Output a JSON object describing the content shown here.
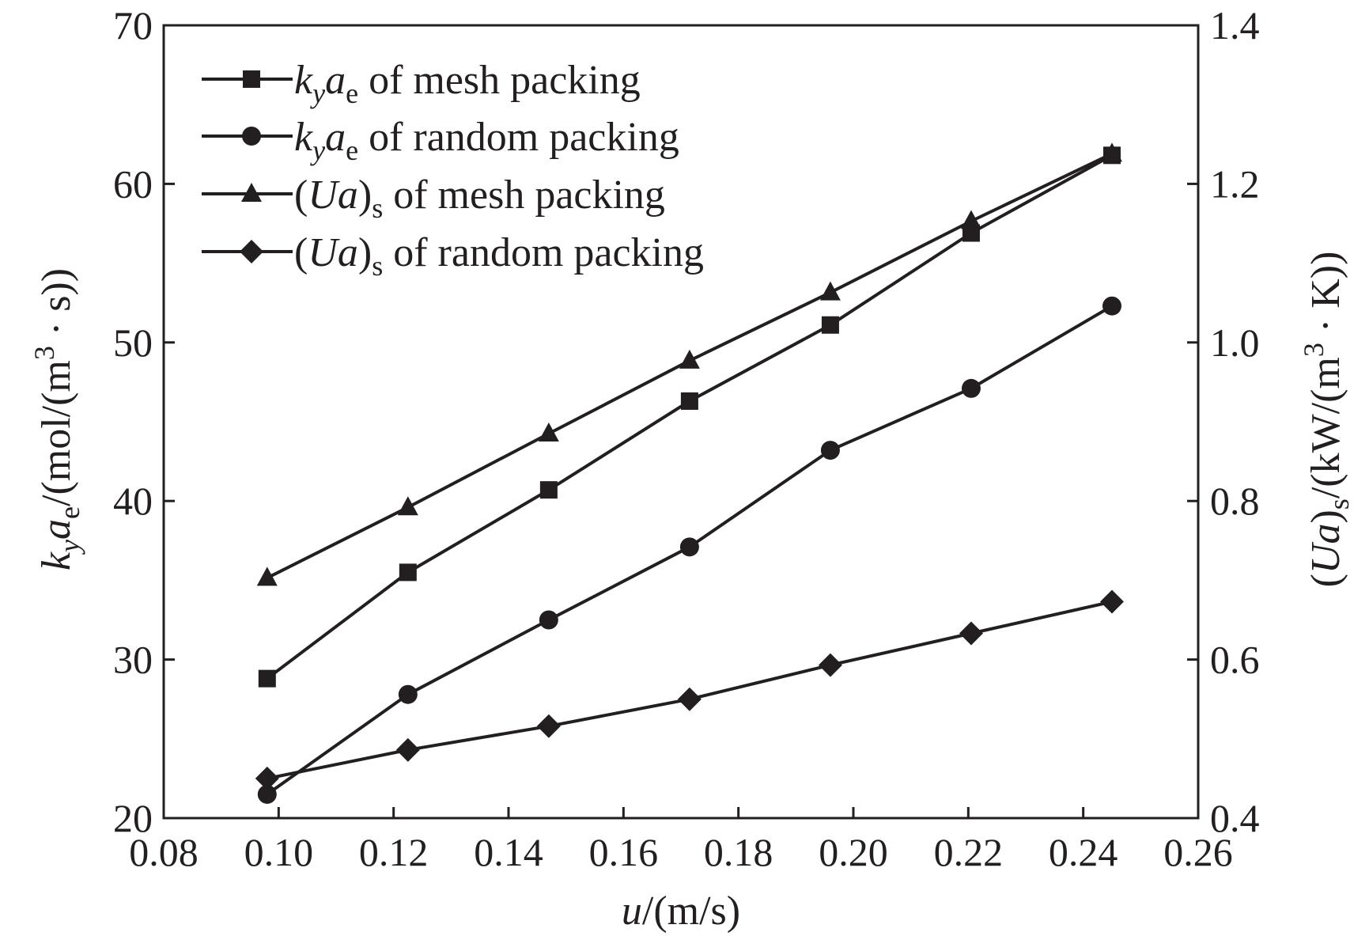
{
  "chart_data": {
    "type": "line",
    "x": [
      0.098,
      0.1225,
      0.147,
      0.1715,
      0.196,
      0.2205,
      0.245
    ],
    "x_axis": {
      "label_italic": "u",
      "label_rest": "/(m/s)",
      "range": [
        0.08,
        0.26
      ],
      "ticks": [
        0.08,
        0.1,
        0.12,
        0.14,
        0.16,
        0.18,
        0.2,
        0.22,
        0.24,
        0.26
      ],
      "tick_labels": [
        "0.08",
        "0.10",
        "0.12",
        "0.14",
        "0.16",
        "0.18",
        "0.20",
        "0.22",
        "0.24",
        "0.26"
      ]
    },
    "y_left": {
      "label_parts": [
        "k",
        "y",
        "a",
        "e",
        "/(mol/(m",
        "3",
        " · s))"
      ],
      "range": [
        20,
        70
      ],
      "ticks": [
        20,
        30,
        40,
        50,
        60,
        70
      ],
      "tick_labels": [
        "20",
        "30",
        "40",
        "50",
        "60",
        "70"
      ]
    },
    "y_right": {
      "label_parts": [
        "(",
        "Ua",
        ")",
        "s",
        "/(kW/(m",
        "3",
        " · K))"
      ],
      "range": [
        0.4,
        1.4
      ],
      "ticks": [
        0.4,
        0.6,
        0.8,
        1.0,
        1.2,
        1.4
      ],
      "tick_labels": [
        "0.4",
        "0.6",
        "0.8",
        "1.0",
        "1.2",
        "1.4"
      ]
    },
    "series": [
      {
        "name": "kyae of mesh packing",
        "legend_parts": [
          "k",
          "y",
          "a",
          "e",
          " of mesh packing"
        ],
        "marker": "square",
        "axis": "left",
        "values": [
          28.8,
          35.5,
          40.7,
          46.3,
          51.1,
          56.9,
          61.8
        ]
      },
      {
        "name": "kyae of random packing",
        "legend_parts": [
          "k",
          "y",
          "a",
          "e",
          " of random packing"
        ],
        "marker": "circle",
        "axis": "left",
        "values": [
          21.5,
          27.8,
          32.5,
          37.1,
          43.2,
          47.1,
          52.3
        ]
      },
      {
        "name": "(Ua)s of mesh packing",
        "legend_parts": [
          "(",
          "Ua",
          ")",
          "s",
          " of mesh packing"
        ],
        "marker": "triangle",
        "axis": "right",
        "values": [
          0.703,
          0.792,
          0.885,
          0.977,
          1.063,
          1.153,
          1.238
        ]
      },
      {
        "name": "(Ua)s of random packing",
        "legend_parts": [
          "(",
          "Ua",
          ")",
          "s",
          "  of random packing"
        ],
        "marker": "diamond",
        "axis": "right",
        "values": [
          0.45,
          0.486,
          0.516,
          0.55,
          0.593,
          0.633,
          0.673
        ]
      }
    ],
    "legend_position": "top-left",
    "grid": false,
    "line_color": "#231f20"
  }
}
